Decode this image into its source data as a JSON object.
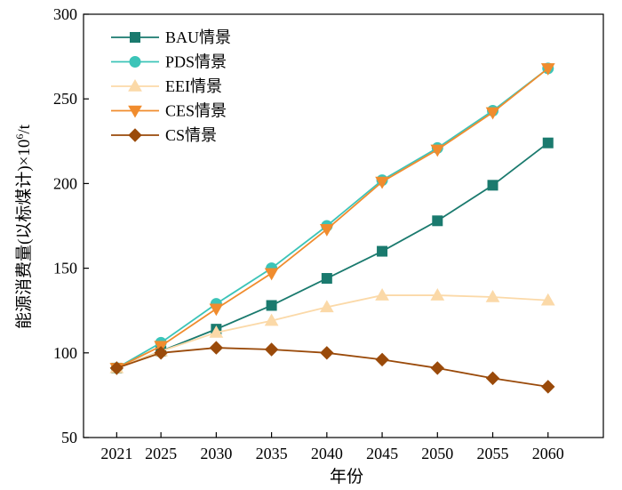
{
  "chart_data": {
    "type": "line",
    "title": "",
    "xlabel": "年份",
    "ylabel_main": "能源消费量(以标煤计)×10",
    "ylabel_exp": "6",
    "ylabel_unit": "/t",
    "categories": [
      "2021",
      "2025",
      "2030",
      "2035",
      "2040",
      "2045",
      "2050",
      "2055",
      "2060"
    ],
    "x": [
      2021,
      2025,
      2030,
      2035,
      2040,
      2045,
      2050,
      2055,
      2060
    ],
    "xlim": [
      2018,
      2065
    ],
    "ylim": [
      50,
      300
    ],
    "yticks": [
      50,
      100,
      150,
      200,
      250,
      300
    ],
    "grid": false,
    "legend_position": "top-left",
    "series": [
      {
        "name": "BAU情景",
        "color": "#1a7a6e",
        "marker": "square",
        "values": [
          91,
          101,
          114,
          128,
          144,
          160,
          178,
          199,
          224
        ]
      },
      {
        "name": "PDS情景",
        "color": "#3cc4b8",
        "marker": "circle",
        "values": [
          91,
          106,
          129,
          150,
          175,
          202,
          221,
          243,
          268
        ]
      },
      {
        "name": "EEI情景",
        "color": "#fbd9a8",
        "marker": "triangle-up",
        "values": [
          91,
          101,
          112,
          119,
          127,
          134,
          134,
          133,
          131
        ]
      },
      {
        "name": "CES情景",
        "color": "#f08c2e",
        "marker": "triangle-down",
        "values": [
          91,
          104,
          126,
          147,
          173,
          201,
          220,
          242,
          268
        ]
      },
      {
        "name": "CS情景",
        "color": "#9a4a0a",
        "marker": "diamond",
        "values": [
          91,
          100,
          103,
          102,
          100,
          96,
          91,
          85,
          80
        ]
      }
    ]
  }
}
